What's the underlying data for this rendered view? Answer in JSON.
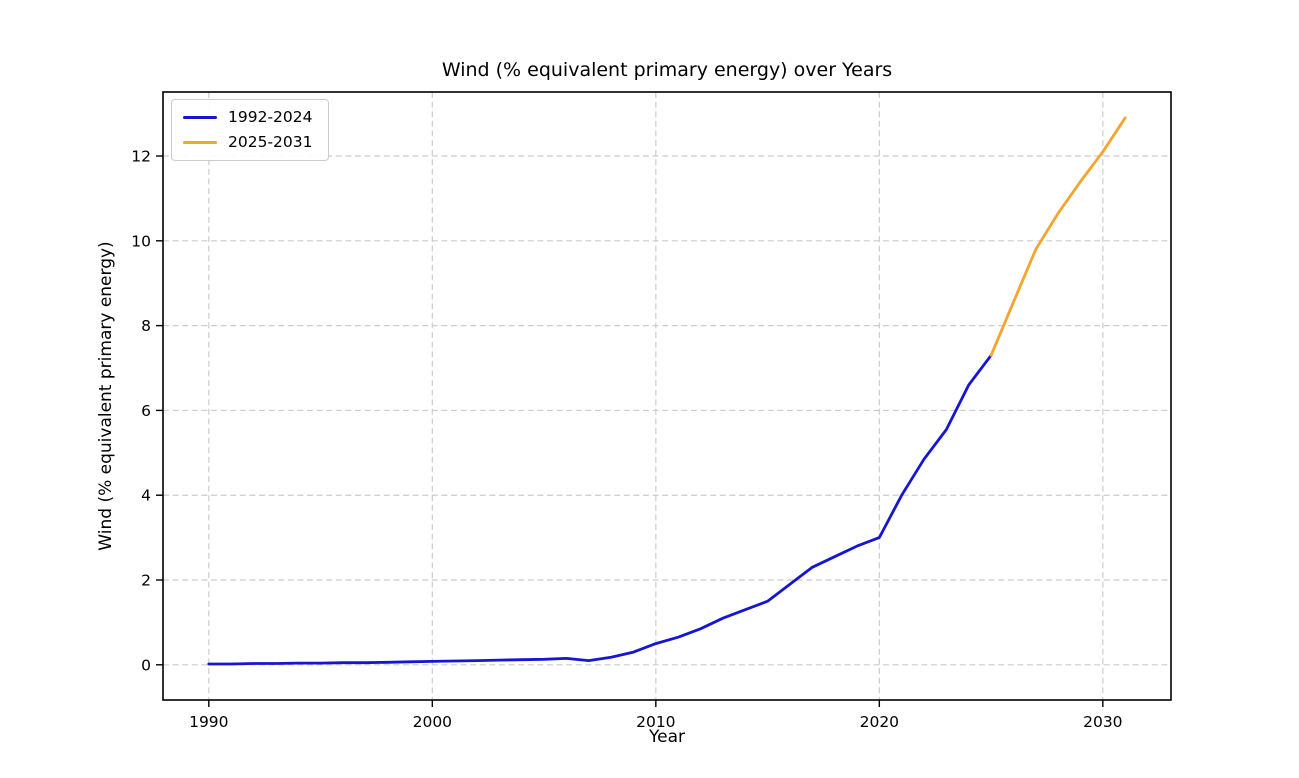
{
  "chart_data": {
    "type": "line",
    "title": "Wind (% equivalent primary energy) over Years",
    "xlabel": "Year",
    "ylabel": "Wind (% equivalent primary energy)",
    "x_ticks": [
      1990,
      2000,
      2010,
      2020,
      2030
    ],
    "y_ticks": [
      0,
      2,
      4,
      6,
      8,
      10,
      12
    ],
    "xlim": [
      1987.95,
      2033.05
    ],
    "ylim": [
      -0.83,
      13.51
    ],
    "grid": "dashed-gray-both-axes",
    "legend_position": "upper-left",
    "background_color": "#ffffff",
    "grid_color": "#cccccc",
    "spine_color": "#000000",
    "series": [
      {
        "name": "1992-2024",
        "color": "#1616d0",
        "x": [
          1990,
          1991,
          1992,
          1993,
          1994,
          1995,
          1996,
          1997,
          1998,
          1999,
          2000,
          2001,
          2002,
          2003,
          2004,
          2005,
          2006,
          2007,
          2008,
          2009,
          2010,
          2011,
          2012,
          2013,
          2014,
          2015,
          2016,
          2017,
          2018,
          2019,
          2020,
          2021,
          2022,
          2023,
          2024,
          2025
        ],
        "y": [
          0.02,
          0.02,
          0.03,
          0.03,
          0.04,
          0.04,
          0.05,
          0.05,
          0.06,
          0.07,
          0.08,
          0.09,
          0.1,
          0.11,
          0.12,
          0.13,
          0.15,
          0.1,
          0.18,
          0.3,
          0.5,
          0.65,
          0.85,
          1.1,
          1.3,
          1.5,
          1.9,
          2.3,
          2.55,
          2.8,
          3.0,
          4.0,
          4.85,
          5.55,
          6.6,
          7.3
        ]
      },
      {
        "name": "2025-2031",
        "color": "#f5a52c",
        "x": [
          2025,
          2026,
          2027,
          2028,
          2029,
          2030,
          2031
        ],
        "y": [
          7.3,
          8.55,
          9.8,
          10.65,
          11.4,
          12.1,
          12.9
        ]
      }
    ]
  }
}
